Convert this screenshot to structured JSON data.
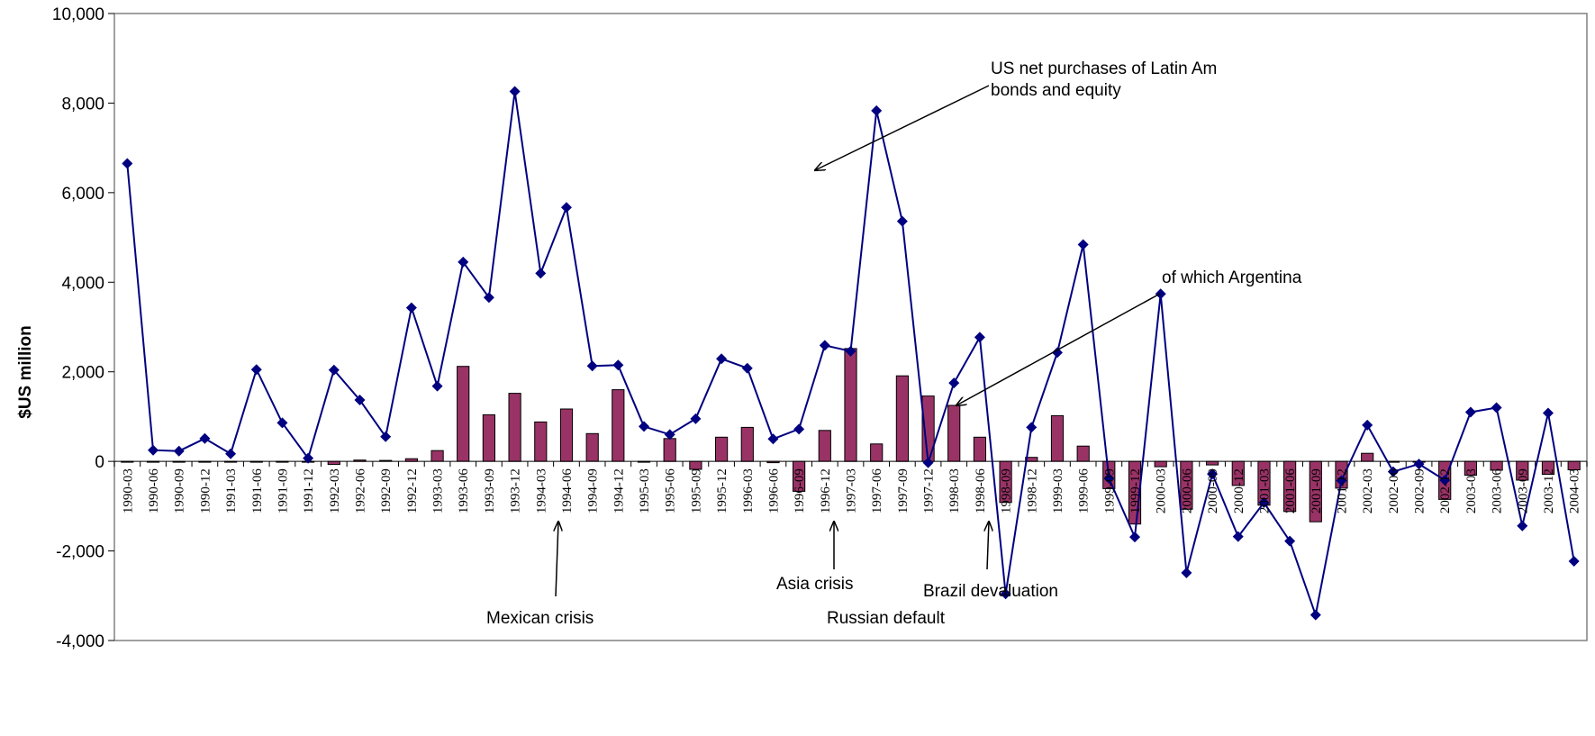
{
  "chart_data": {
    "type": "bar+line",
    "title": "",
    "xlabel": "",
    "ylabel": "$US million",
    "ylim": [
      -4000,
      10000
    ],
    "yticks": [
      10000,
      8000,
      6000,
      4000,
      2000,
      0,
      -2000,
      -4000
    ],
    "ytick_labels": [
      "10,000",
      "8,000",
      "6,000",
      "4,000",
      "2,000",
      "0",
      "-2,000",
      "-4,000"
    ],
    "grid": false,
    "categories": [
      "1990-03",
      "1990-06",
      "1990-09",
      "1990-12",
      "1991-03",
      "1991-06",
      "1991-09",
      "1991-12",
      "1992-03",
      "1992-06",
      "1992-09",
      "1992-12",
      "1993-03",
      "1993-06",
      "1993-09",
      "1993-12",
      "1994-03",
      "1994-06",
      "1994-09",
      "1994-12",
      "1995-03",
      "1995-06",
      "1995-09",
      "1995-12",
      "1996-03",
      "1996-06",
      "1996-09",
      "1996-12",
      "1997-03",
      "1997-06",
      "1997-09",
      "1997-12",
      "1998-03",
      "1998-06",
      "1998-09",
      "1998-12",
      "1999-03",
      "1999-06",
      "1999-09",
      "1999-12",
      "2000-03",
      "2000-06",
      "2000-09",
      "2000-12",
      "2001-03",
      "2001-06",
      "2001-09",
      "2001-12",
      "2002-03",
      "2002-06",
      "2002-09",
      "2002-12",
      "2003-03",
      "2003-06",
      "2003-09",
      "2003-12",
      "2004-03"
    ],
    "series": [
      {
        "kind": "line",
        "name": "US net purchases of Latin Am bonds and equity",
        "color": "#000080",
        "values": [
          6650,
          250,
          230,
          510,
          170,
          2050,
          860,
          70,
          2040,
          1370,
          550,
          3430,
          1680,
          4450,
          3660,
          8260,
          4200,
          5670,
          2130,
          2150,
          780,
          600,
          950,
          2290,
          2080,
          500,
          720,
          2590,
          2460,
          7830,
          5360,
          -30,
          1750,
          2770,
          -2960,
          760,
          2430,
          4840,
          -380,
          -1690,
          3740,
          -2490,
          -280,
          -1680,
          -920,
          -1780,
          -3430,
          -430,
          810,
          -230,
          -60,
          -420,
          1100,
          1200,
          -1440,
          1080,
          -2230
        ]
      },
      {
        "kind": "bar",
        "name": "of which Argentina",
        "color": "#993366",
        "values": [
          -20,
          -20,
          -20,
          -20,
          -20,
          -20,
          -20,
          -20,
          -70,
          30,
          20,
          60,
          240,
          2120,
          1040,
          1520,
          880,
          1170,
          620,
          1600,
          -20,
          510,
          -180,
          540,
          760,
          -30,
          -670,
          690,
          2520,
          390,
          1910,
          1460,
          1250,
          540,
          -920,
          90,
          1020,
          340,
          -610,
          -1400,
          -120,
          -1070,
          -80,
          -540,
          -980,
          -1120,
          -1350,
          -600,
          180,
          -10,
          -10,
          -850,
          -310,
          -200,
          -420,
          -290,
          -190
        ]
      }
    ],
    "annotations": [
      {
        "lines": [
          "US net purchases of Latin Am",
          "bonds and equity"
        ]
      },
      {
        "lines": [
          "of which Argentina"
        ]
      },
      {
        "lines": [
          "Mexican crisis"
        ]
      },
      {
        "lines": [
          "Asia crisis"
        ]
      },
      {
        "lines": [
          "Russian default"
        ]
      },
      {
        "lines": [
          "Brazil devaluation"
        ]
      }
    ]
  }
}
